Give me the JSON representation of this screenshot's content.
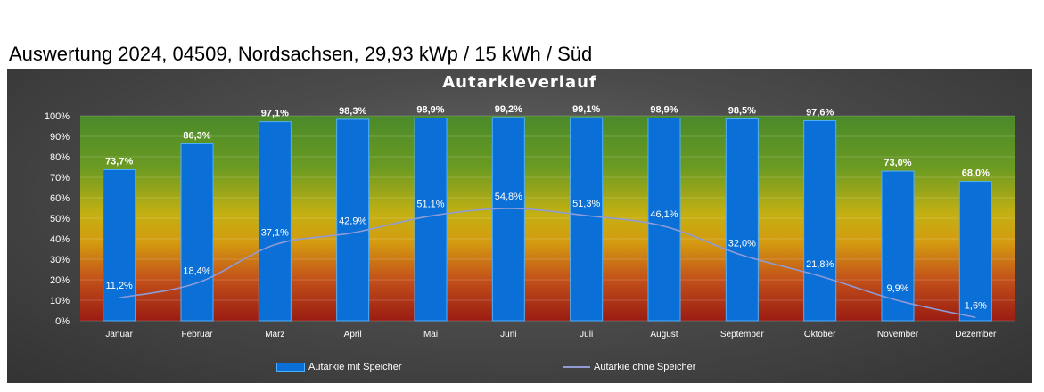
{
  "page": {
    "title": "Auswertung 2024, 04509, Nordsachsen, 29,93 kWp / 15 kWh / Süd"
  },
  "colors": {
    "bar": "#0a6fd6",
    "bar_border": "#4fb0ff",
    "line": "#8f9bd6",
    "gradient_top": "#4c8c2a",
    "gradient_mid": "#d4b40c",
    "gradient_bottom": "#a01c12"
  },
  "chart_data": {
    "type": "bar",
    "title": "Autarkieverlauf",
    "categories": [
      "Januar",
      "Februar",
      "März",
      "April",
      "Mai",
      "Juni",
      "Juli",
      "August",
      "September",
      "Oktober",
      "November",
      "Dezember"
    ],
    "series": [
      {
        "name": "Autarkie mit Speicher",
        "type": "bar",
        "values": [
          73.7,
          86.3,
          97.1,
          98.3,
          98.9,
          99.2,
          99.1,
          98.9,
          98.5,
          97.6,
          73.0,
          68.0
        ],
        "labels": [
          "73,7%",
          "86,3%",
          "97,1%",
          "98,3%",
          "98,9%",
          "99,2%",
          "99,1%",
          "98,9%",
          "98,5%",
          "97,6%",
          "73,0%",
          "68,0%"
        ]
      },
      {
        "name": "Autarkie ohne Speicher",
        "type": "line",
        "values": [
          11.2,
          18.4,
          37.1,
          42.9,
          51.1,
          54.8,
          51.3,
          46.1,
          32.0,
          21.8,
          9.9,
          1.6
        ],
        "labels": [
          "11,2%",
          "18,4%",
          "37,1%",
          "42,9%",
          "51,1%",
          "54,8%",
          "51,3%",
          "46,1%",
          "32,0%",
          "21,8%",
          "9,9%",
          "1,6%"
        ]
      }
    ],
    "yticks": [
      "0%",
      "10%",
      "20%",
      "30%",
      "40%",
      "50%",
      "60%",
      "70%",
      "80%",
      "90%",
      "100%"
    ],
    "ylim": [
      0,
      100
    ],
    "legend_position": "bottom"
  }
}
